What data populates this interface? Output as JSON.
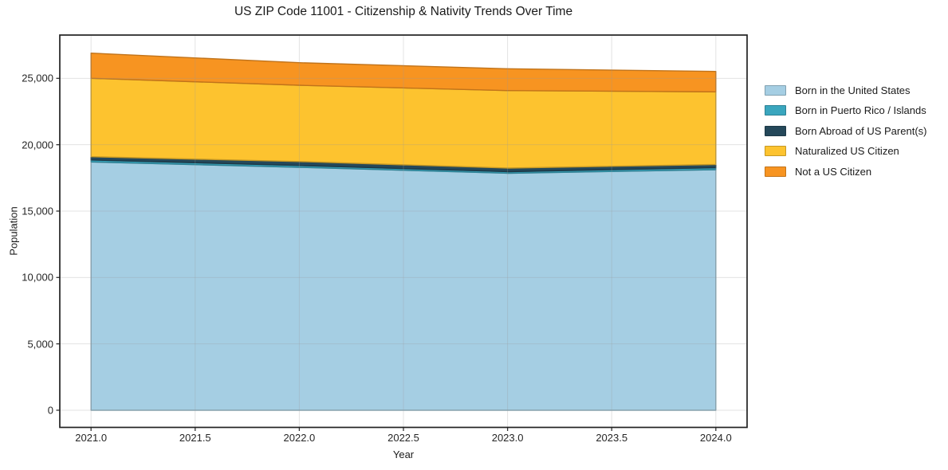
{
  "chart_data": {
    "type": "area",
    "stacked": true,
    "title": "US ZIP Code 11001 - Citizenship & Nativity Trends Over Time",
    "xlabel": "Year",
    "ylabel": "Population",
    "x": [
      2021,
      2022,
      2023,
      2024
    ],
    "series": [
      {
        "name": "Born in the United States",
        "color": "#a5cee3",
        "values": [
          18700,
          18300,
          17850,
          18120
        ]
      },
      {
        "name": "Born in Puerto Rico / Islands",
        "color": "#3aa6be",
        "values": [
          150,
          140,
          120,
          150
        ]
      },
      {
        "name": "Born Abroad of US Parent(s)",
        "color": "#25485a",
        "values": [
          250,
          290,
          270,
          240
        ]
      },
      {
        "name": "Naturalized US Citizen",
        "color": "#fdc32f",
        "values": [
          5900,
          5750,
          5840,
          5470
        ]
      },
      {
        "name": "Not a US Citizen",
        "color": "#f79421",
        "values": [
          1900,
          1700,
          1640,
          1540
        ]
      }
    ],
    "xlim": [
      2020.85,
      2024.15
    ],
    "ylim": [
      -1292,
      28260
    ],
    "xticks": [
      2021.0,
      2021.5,
      2022.0,
      2022.5,
      2023.0,
      2023.5,
      2024.0
    ],
    "xtick_labels": [
      "2021.0",
      "2021.5",
      "2022.0",
      "2022.5",
      "2023.0",
      "2023.5",
      "2024.0"
    ],
    "yticks": [
      0,
      5000,
      10000,
      15000,
      20000,
      25000
    ],
    "ytick_labels": [
      "0",
      "5,000",
      "10,000",
      "15,000",
      "20,000",
      "25,000"
    ],
    "grid": true,
    "grid_on_top": true,
    "legend_position": "right-outside",
    "colors": {
      "spine": "#222222",
      "tick": "#333333",
      "grid": "#999999",
      "text": "#1a1a1a"
    }
  }
}
